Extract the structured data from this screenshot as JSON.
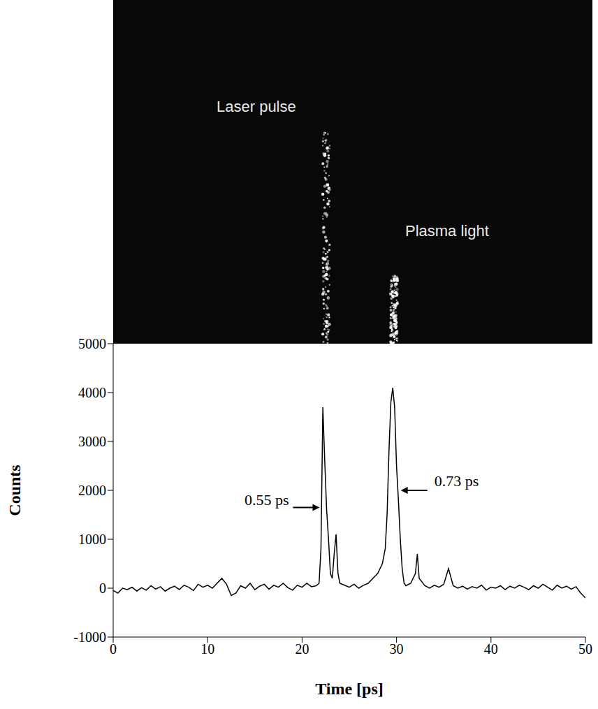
{
  "chart_data": {
    "type": "line",
    "x_label": "Time [ps]",
    "y_label": "Counts",
    "color": "#000000",
    "xlim": [
      0,
      50
    ],
    "ylim": [
      -1000,
      5000
    ],
    "xticks": [
      0,
      10,
      20,
      30,
      40,
      50
    ],
    "yticks": [
      -1000,
      0,
      1000,
      2000,
      3000,
      4000,
      5000
    ],
    "grid": false,
    "x": [
      0,
      0.5,
      1,
      1.5,
      2,
      2.5,
      3,
      3.5,
      4,
      4.5,
      5,
      5.5,
      6,
      6.5,
      7,
      7.5,
      8,
      8.5,
      9,
      9.5,
      10,
      10.5,
      11,
      11.5,
      12,
      12.5,
      13,
      13.5,
      14,
      14.5,
      15,
      15.5,
      16,
      16.5,
      17,
      17.5,
      18,
      18.5,
      19,
      19.5,
      20,
      20.5,
      21,
      21.5,
      21.8,
      22.0,
      22.2,
      22.4,
      22.6,
      22.8,
      23.0,
      23.2,
      23.4,
      23.6,
      23.8,
      24.0,
      24.5,
      25,
      25.5,
      26,
      26.5,
      27,
      27.5,
      28,
      28.5,
      28.8,
      29.0,
      29.2,
      29.4,
      29.6,
      29.8,
      30.0,
      30.2,
      30.4,
      30.6,
      30.8,
      31.0,
      31.5,
      32.0,
      32.2,
      32.4,
      33,
      33.5,
      34,
      34.5,
      35,
      35.5,
      36,
      36.5,
      37,
      37.5,
      38,
      38.5,
      39,
      39.5,
      40,
      40.5,
      41,
      41.5,
      42,
      42.5,
      43,
      43.5,
      44,
      44.5,
      45,
      45.5,
      46,
      46.5,
      47,
      47.5,
      48,
      48.5,
      49,
      49.5,
      50
    ],
    "values": [
      -50,
      -100,
      0,
      -30,
      20,
      -60,
      10,
      -40,
      50,
      -20,
      30,
      -60,
      0,
      40,
      -30,
      60,
      20,
      -50,
      80,
      20,
      60,
      0,
      100,
      200,
      80,
      -150,
      -100,
      50,
      0,
      100,
      -30,
      40,
      80,
      -20,
      60,
      20,
      100,
      10,
      -40,
      60,
      20,
      100,
      30,
      50,
      100,
      800,
      3700,
      2600,
      1600,
      1000,
      300,
      200,
      700,
      1100,
      300,
      100,
      60,
      20,
      80,
      0,
      60,
      100,
      200,
      300,
      500,
      800,
      1500,
      2800,
      3800,
      4100,
      3700,
      2500,
      1800,
      1000,
      400,
      100,
      50,
      100,
      300,
      700,
      200,
      50,
      0,
      60,
      20,
      80,
      400,
      50,
      0,
      40,
      -20,
      30,
      0,
      60,
      -40,
      20,
      0,
      50,
      -30,
      40,
      0,
      60,
      20,
      -30,
      50,
      0,
      80,
      20,
      -40,
      60,
      0,
      40,
      -20,
      30,
      -100,
      -200
    ],
    "annotations": [
      {
        "text": "0.55 ps",
        "x": 22.0,
        "y": 1650
      },
      {
        "text": "0.73 ps",
        "x": 30.3,
        "y": 2000
      }
    ]
  },
  "streak_image": {
    "labels": [
      "Laser pulse",
      "Plasma light"
    ]
  }
}
